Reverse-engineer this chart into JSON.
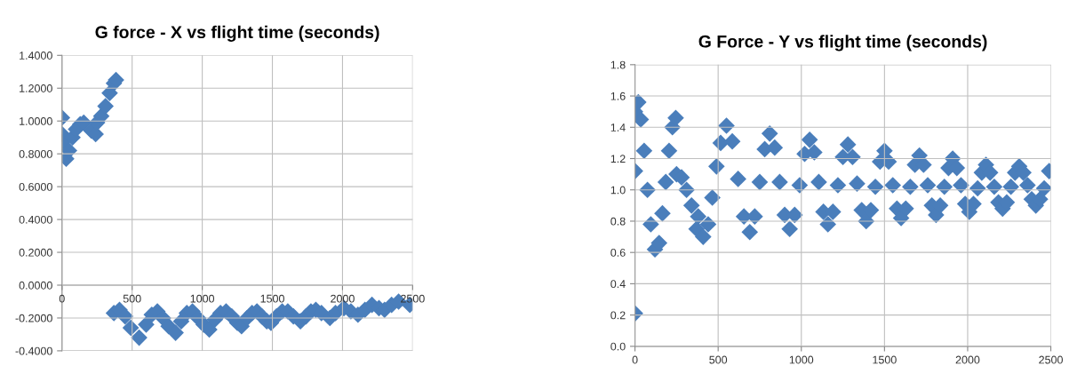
{
  "chart_data": [
    {
      "type": "scatter",
      "title": "G force - X vs flight time (seconds)",
      "marker": "diamond",
      "grid": true,
      "color": "#4a7ebb",
      "x": [
        0,
        0,
        0,
        30,
        50,
        75,
        100,
        130,
        155,
        210,
        240,
        250,
        280,
        310,
        340,
        370,
        385,
        370,
        410,
        450,
        490,
        550,
        600,
        640,
        680,
        720,
        760,
        810,
        850,
        890,
        930,
        970,
        1010,
        1050,
        1090,
        1130,
        1170,
        1210,
        1250,
        1280,
        1320,
        1355,
        1390,
        1425,
        1460,
        1490,
        1530,
        1570,
        1610,
        1650,
        1700,
        1740,
        1775,
        1810,
        1850,
        1910,
        1950,
        2010,
        2060,
        2110,
        2160,
        2210,
        2260,
        2300,
        2350,
        2400,
        2480
      ],
      "values": [
        1.02,
        0.92,
        0.87,
        0.77,
        0.82,
        0.9,
        0.95,
        0.98,
        0.99,
        0.94,
        0.92,
        0.99,
        1.03,
        1.09,
        1.17,
        1.23,
        1.25,
        -0.17,
        -0.15,
        -0.19,
        -0.26,
        -0.32,
        -0.24,
        -0.18,
        -0.16,
        -0.2,
        -0.25,
        -0.29,
        -0.22,
        -0.17,
        -0.16,
        -0.2,
        -0.24,
        -0.27,
        -0.21,
        -0.17,
        -0.16,
        -0.19,
        -0.23,
        -0.25,
        -0.2,
        -0.17,
        -0.16,
        -0.19,
        -0.22,
        -0.23,
        -0.19,
        -0.16,
        -0.16,
        -0.19,
        -0.22,
        -0.19,
        -0.16,
        -0.15,
        -0.17,
        -0.2,
        -0.17,
        -0.14,
        -0.16,
        -0.18,
        -0.15,
        -0.12,
        -0.14,
        -0.15,
        -0.12,
        -0.1,
        -0.12
      ],
      "xlim": [
        0,
        2500
      ],
      "xticks": [
        0,
        500,
        1000,
        1500,
        2000,
        2500
      ],
      "ylim": [
        -0.4,
        1.4
      ],
      "yticks": [
        {
          "value": -0.4,
          "label": "-0.4000"
        },
        {
          "value": -0.2,
          "label": "-0.2000"
        },
        {
          "value": 0,
          "label": "0.0000"
        },
        {
          "value": 0.2,
          "label": "0.2000"
        },
        {
          "value": 0.4,
          "label": "0.4000"
        },
        {
          "value": 0.6,
          "label": "0.6000"
        },
        {
          "value": 0.8,
          "label": "0.8000"
        },
        {
          "value": 1.0,
          "label": "1.0000"
        },
        {
          "value": 1.2,
          "label": "1.2000"
        },
        {
          "value": 1.4,
          "label": "1.4000"
        }
      ]
    },
    {
      "type": "scatter",
      "title": "G Force - Y vs flight time (seconds)",
      "marker": "diamond",
      "grid": true,
      "color": "#4a7ebb",
      "x": [
        0,
        0,
        0,
        20,
        35,
        55,
        75,
        95,
        120,
        145,
        165,
        185,
        205,
        225,
        245,
        250,
        280,
        310,
        340,
        380,
        370,
        410,
        440,
        465,
        490,
        515,
        550,
        585,
        620,
        655,
        690,
        720,
        750,
        780,
        810,
        840,
        870,
        900,
        930,
        960,
        990,
        1020,
        1050,
        1078,
        1105,
        1133,
        1160,
        1190,
        1220,
        1250,
        1280,
        1308,
        1335,
        1363,
        1390,
        1418,
        1445,
        1473,
        1500,
        1525,
        1550,
        1575,
        1600,
        1628,
        1655,
        1683,
        1710,
        1735,
        1760,
        1785,
        1810,
        1835,
        1860,
        1885,
        1910,
        1935,
        1960,
        1985,
        2010,
        2035,
        2060,
        2085,
        2110,
        2135,
        2160,
        2185,
        2210,
        2235,
        2260,
        2285,
        2310,
        2335,
        2360,
        2385,
        2410,
        2435,
        2460,
        2490
      ],
      "values": [
        0.21,
        1.12,
        1.5,
        1.56,
        1.45,
        1.25,
        1.0,
        0.78,
        0.62,
        0.66,
        0.85,
        1.05,
        1.25,
        1.4,
        1.46,
        1.1,
        1.08,
        1.0,
        0.9,
        0.83,
        0.75,
        0.7,
        0.78,
        0.95,
        1.15,
        1.3,
        1.41,
        1.31,
        1.07,
        0.83,
        0.73,
        0.83,
        1.05,
        1.26,
        1.36,
        1.27,
        1.05,
        0.84,
        0.75,
        0.84,
        1.03,
        1.23,
        1.32,
        1.24,
        1.05,
        0.86,
        0.78,
        0.86,
        1.03,
        1.21,
        1.29,
        1.21,
        1.04,
        0.87,
        0.8,
        0.87,
        1.02,
        1.18,
        1.25,
        1.18,
        1.03,
        0.88,
        0.82,
        0.88,
        1.02,
        1.16,
        1.22,
        1.16,
        1.03,
        0.9,
        0.84,
        0.9,
        1.02,
        1.14,
        1.2,
        1.14,
        1.03,
        0.91,
        0.86,
        0.91,
        1.01,
        1.11,
        1.16,
        1.11,
        1.02,
        0.92,
        0.88,
        0.92,
        1.02,
        1.11,
        1.15,
        1.11,
        1.03,
        0.94,
        0.9,
        0.94,
        1.01,
        1.12
      ],
      "xlim": [
        0,
        2500
      ],
      "xticks": [
        0,
        500,
        1000,
        1500,
        2000,
        2500
      ],
      "ylim": [
        0,
        1.8
      ],
      "yticks": [
        {
          "value": 0,
          "label": "0.0"
        },
        {
          "value": 0.2,
          "label": "0.2"
        },
        {
          "value": 0.4,
          "label": "0.4"
        },
        {
          "value": 0.6,
          "label": "0.6"
        },
        {
          "value": 0.8,
          "label": "0.8"
        },
        {
          "value": 1.0,
          "label": "1.0"
        },
        {
          "value": 1.2,
          "label": "1.2"
        },
        {
          "value": 1.4,
          "label": "1.4"
        },
        {
          "value": 1.6,
          "label": "1.6"
        },
        {
          "value": 1.8,
          "label": "1.8"
        }
      ]
    }
  ]
}
